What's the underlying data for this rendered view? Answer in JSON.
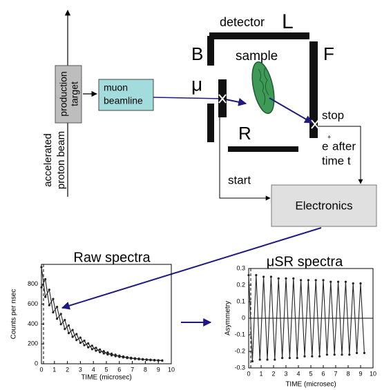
{
  "diagram": {
    "beam_label": [
      "accelerated",
      "proton beam"
    ],
    "target_label": [
      "production",
      "target"
    ],
    "beamline_label": [
      "muon",
      "beamline"
    ],
    "detector": "detector",
    "L": "L",
    "B": "B",
    "F": "F",
    "mu": "μ",
    "R": "R",
    "sample": "sample",
    "stop": "stop",
    "positron": "e",
    "positron_charge": "+",
    "after": "after",
    "time": "time t",
    "start": "start",
    "electronics": "Electronics"
  },
  "chart_data": [
    {
      "type": "line",
      "title": "Raw spectra",
      "xlabel": "TIME (microsec)",
      "ylabel": "Counts per nsec",
      "xlim": [
        0,
        10
      ],
      "xticks": [
        0,
        1,
        2,
        3,
        4,
        5,
        6,
        7,
        8,
        9,
        10
      ],
      "ylim": [
        0,
        1000
      ],
      "yticks": [
        0,
        200,
        400,
        600,
        800
      ],
      "x": [
        0,
        0.3,
        0.6,
        0.9,
        1.2,
        1.5,
        1.8,
        2.1,
        2.4,
        2.7,
        3,
        3.3,
        3.6,
        3.9,
        4.2,
        4.5,
        4.8,
        5.1,
        5.4,
        5.7,
        6,
        6.3,
        6.6,
        6.9,
        7.2,
        7.5,
        7.8,
        8.1,
        8.4,
        8.7,
        9,
        9.3
      ],
      "series": [
        {
          "color": "#222",
          "values": [
            972,
            673,
            745,
            517,
            572,
            398,
            440,
            308,
            340,
            239,
            263,
            187,
            205,
            147,
            161,
            117,
            127,
            94,
            102,
            76,
            82,
            63,
            67,
            52,
            56,
            45,
            47,
            39,
            41,
            34,
            36,
            31
          ]
        },
        {
          "color": "#222",
          "values": [
            768,
            851,
            589,
            652,
            453,
            501,
            350,
            386,
            271,
            299,
            211,
            232,
            166,
            182,
            131,
            143,
            104,
            114,
            84,
            91,
            69,
            74,
            57,
            61,
            48,
            52,
            42,
            44,
            36,
            38,
            32,
            34
          ]
        }
      ]
    },
    {
      "type": "line",
      "title": "μSR spectra",
      "xlabel": "TIME (microsec)",
      "ylabel": "Asymmetry",
      "xlim": [
        0,
        10
      ],
      "xticks": [
        0,
        1,
        2,
        3,
        4,
        5,
        6,
        7,
        8,
        9,
        10
      ],
      "ylim": [
        -0.3,
        0.3
      ],
      "yticks": [
        -0.3,
        -0.2,
        -0.1,
        0,
        0.1,
        0.2,
        0.3
      ],
      "x": [
        0,
        0.3,
        0.6,
        0.9,
        1.2,
        1.5,
        1.8,
        2.1,
        2.4,
        2.7,
        3,
        3.3,
        3.6,
        3.9,
        4.2,
        4.5,
        4.8,
        5.1,
        5.4,
        5.7,
        6,
        6.3,
        6.6,
        6.9,
        7.2,
        7.5,
        7.8,
        8.1,
        8.4,
        8.7,
        9,
        9.3
      ],
      "series": [
        {
          "color": "#222",
          "values": [
            0.26,
            -0.26,
            0.26,
            -0.25,
            0.25,
            -0.25,
            0.25,
            -0.25,
            0.24,
            -0.24,
            0.24,
            -0.24,
            0.24,
            -0.24,
            0.23,
            -0.23,
            0.23,
            -0.23,
            0.23,
            -0.23,
            0.23,
            -0.22,
            0.22,
            -0.22,
            0.22,
            -0.22,
            0.22,
            -0.22,
            0.21,
            -0.21,
            0.21,
            -0.21
          ]
        }
      ]
    }
  ]
}
